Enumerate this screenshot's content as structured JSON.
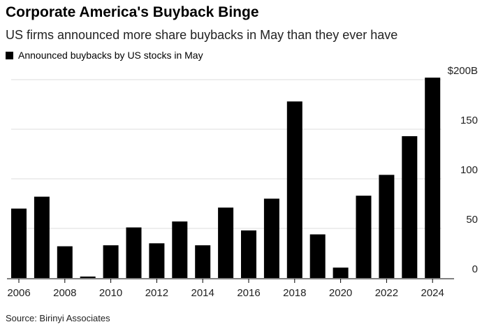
{
  "chart_data": {
    "type": "bar",
    "title": "Corporate America's Buyback Binge",
    "subtitle": "US firms announced more share buybacks in May than they ever have",
    "legend": "Announced buybacks by US stocks in May",
    "source": "Source: Birinyi Associates",
    "categories": [
      "2006",
      "2007",
      "2008",
      "2009",
      "2010",
      "2011",
      "2012",
      "2013",
      "2014",
      "2015",
      "2016",
      "2017",
      "2018",
      "2019",
      "2020",
      "2021",
      "2022",
      "2023",
      "2024"
    ],
    "values": [
      70,
      82,
      32,
      1.5,
      33,
      51,
      35,
      57,
      33,
      71,
      48,
      80,
      178,
      44,
      10.5,
      83,
      104,
      143,
      202
    ],
    "x_tick_labels": [
      "2006",
      "2008",
      "2010",
      "2012",
      "2014",
      "2016",
      "2018",
      "2020",
      "2022",
      "2024"
    ],
    "y_tick_labels": [
      "0",
      "50",
      "100",
      "150",
      "$200B"
    ],
    "y_ticks": [
      0,
      50,
      100,
      150,
      200
    ],
    "ylim": [
      0,
      200
    ],
    "grid": true,
    "bar_color": "#000000",
    "legend_position": "top-left"
  }
}
